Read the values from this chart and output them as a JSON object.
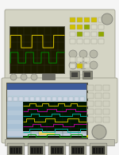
{
  "body_color": "#d4d4c4",
  "body_edge": "#a0a090",
  "scope_screen_bg": "#1a1a00",
  "scope_trace_yellow": "#c8b400",
  "scope_trace_green": "#008800",
  "la_win_bg": "#b8ccd8",
  "la_sidebar_bg": "#b0c8d8",
  "la_wave_bg": "#001400",
  "la_trace_yellow": "#d0c000",
  "la_trace_magenta": "#c000a0",
  "la_trace_cyan": "#00b0a0",
  "la_trace_green": "#00a000",
  "la_menubar": "#3c5a9a",
  "la_toolbar": "#c8d4e0",
  "btn_yellow": "#d0c000",
  "btn_green": "#88b000",
  "btn_body": "#d0d0c0",
  "btn_dark": "#b0b0a0",
  "knob_color": "#b8b8a8",
  "probe_body": "#b8b8a8",
  "probe_dark": "#404040",
  "probe_conn": "#2a2a28",
  "bg_white": "#f5f5f5",
  "figsize": [
    1.5,
    1.95
  ],
  "dpi": 100
}
